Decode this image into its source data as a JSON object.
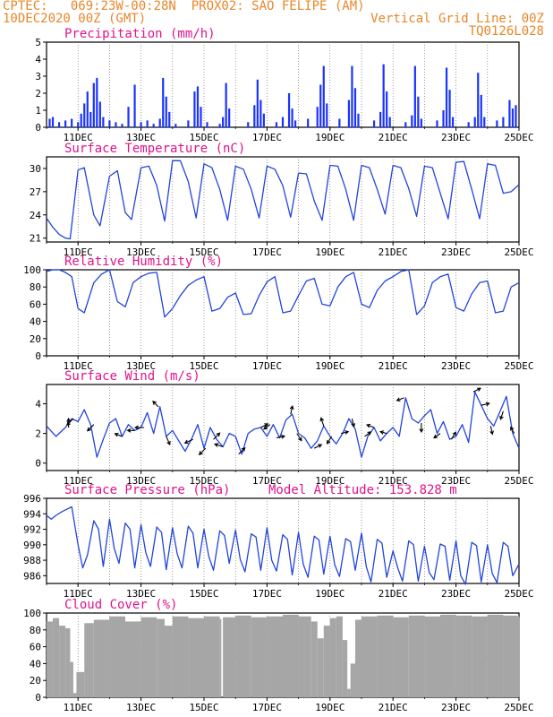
{
  "header": {
    "line1_left": "CPTEC:   069:23W-00:28N  PROX02: SAO FELIPE (AM)",
    "line2_left": "10DEC2020 00Z (GMT)",
    "line2_right": "Vertical Grid Line: 00Z",
    "line3_right": "TQ0126L028"
  },
  "colors": {
    "header": "#e8862a",
    "panel_title": "#e0138c",
    "line": "#2244dd",
    "bar": "#1a33ff",
    "cloud": "#a6a6a6",
    "arrow": "#000000"
  },
  "x_ticks": [
    "11DEC",
    "13DEC",
    "15DEC",
    "17DEC",
    "19DEC",
    "21DEC",
    "23DEC",
    "25DEC"
  ],
  "chart_data": [
    {
      "type": "bar",
      "title": "Precipitation (mm/h)",
      "x_range_days": [
        10,
        25
      ],
      "ylim": [
        0,
        5
      ],
      "yticks": [
        0,
        1,
        2,
        3,
        4,
        5
      ],
      "x": [
        10.1,
        10.2,
        10.4,
        10.6,
        10.8,
        11.0,
        11.1,
        11.2,
        11.3,
        11.4,
        11.5,
        11.6,
        11.7,
        11.8,
        12.0,
        12.2,
        12.4,
        12.6,
        12.8,
        13.0,
        13.2,
        13.4,
        13.6,
        13.7,
        13.8,
        13.9,
        14.1,
        14.5,
        14.7,
        14.8,
        14.9,
        15.1,
        15.5,
        15.6,
        15.7,
        15.8,
        16.4,
        16.6,
        16.7,
        16.8,
        16.9,
        17.3,
        17.5,
        17.7,
        17.8,
        17.9,
        18.3,
        18.6,
        18.7,
        18.8,
        18.9,
        19.3,
        19.6,
        19.7,
        19.8,
        19.9,
        20.4,
        20.6,
        20.7,
        20.8,
        20.9,
        21.4,
        21.6,
        21.7,
        21.8,
        21.9,
        22.4,
        22.6,
        22.7,
        22.8,
        22.9,
        23.4,
        23.6,
        23.7,
        23.8,
        23.9,
        24.3,
        24.5,
        24.7,
        24.8,
        24.9
      ],
      "values": [
        0.5,
        0.6,
        0.3,
        0.4,
        0.5,
        0.3,
        0.8,
        1.4,
        2.1,
        0.9,
        2.6,
        2.9,
        1.5,
        0.6,
        0.4,
        0.3,
        0.2,
        1.2,
        2.5,
        0.3,
        0.4,
        0.2,
        0.5,
        2.9,
        1.8,
        0.9,
        0.2,
        0.4,
        2.1,
        2.4,
        1.2,
        0.3,
        0.2,
        0.6,
        2.6,
        1.1,
        0.3,
        1.3,
        2.8,
        1.6,
        0.8,
        0.3,
        0.6,
        2.0,
        1.1,
        0.4,
        0.5,
        1.2,
        2.5,
        3.6,
        1.4,
        0.5,
        1.6,
        3.6,
        2.3,
        0.8,
        0.4,
        0.9,
        3.7,
        2.1,
        0.6,
        0.3,
        0.7,
        3.6,
        1.8,
        0.5,
        0.4,
        1.0,
        3.5,
        2.2,
        0.6,
        0.3,
        0.6,
        3.2,
        1.9,
        0.6,
        0.4,
        0.6,
        1.6,
        1.1,
        1.3
      ]
    },
    {
      "type": "line",
      "title": "Surface Temperature (nC)",
      "x_range_days": [
        10,
        25
      ],
      "ylim": [
        20.5,
        31.5
      ],
      "yticks": [
        21,
        24,
        27,
        30
      ],
      "x": [
        10.0,
        10.2,
        10.4,
        10.6,
        10.75,
        11.0,
        11.2,
        11.5,
        11.7,
        12.0,
        12.25,
        12.5,
        12.7,
        13.0,
        13.25,
        13.5,
        13.75,
        14.0,
        14.25,
        14.5,
        14.75,
        15.0,
        15.25,
        15.5,
        15.75,
        16.0,
        16.25,
        16.5,
        16.75,
        17.0,
        17.25,
        17.5,
        17.75,
        18.0,
        18.25,
        18.5,
        18.75,
        19.0,
        19.25,
        19.5,
        19.75,
        20.0,
        20.25,
        20.5,
        20.75,
        21.0,
        21.25,
        21.5,
        21.75,
        22.0,
        22.25,
        22.5,
        22.75,
        23.0,
        23.25,
        23.5,
        23.75,
        24.0,
        24.25,
        24.5,
        24.75,
        25.0
      ],
      "values": [
        23.6,
        22.4,
        21.5,
        21.0,
        20.9,
        29.8,
        30.1,
        24.0,
        22.6,
        29.0,
        29.7,
        24.3,
        23.4,
        30.1,
        30.3,
        27.8,
        23.2,
        31.0,
        31.0,
        28.3,
        23.6,
        30.6,
        30.1,
        27.3,
        23.3,
        30.3,
        29.9,
        27.3,
        23.6,
        30.3,
        29.9,
        27.8,
        23.7,
        29.4,
        29.3,
        25.8,
        23.3,
        30.4,
        30.3,
        27.3,
        23.3,
        30.4,
        30.1,
        27.3,
        24.1,
        30.4,
        30.1,
        27.4,
        23.8,
        30.3,
        30.1,
        26.8,
        23.5,
        30.8,
        30.9,
        27.3,
        23.5,
        30.6,
        30.4,
        26.8,
        27.0,
        27.9
      ]
    },
    {
      "type": "line",
      "title": "Relative Humidity (%)",
      "x_range_days": [
        10,
        25
      ],
      "ylim": [
        0,
        100
      ],
      "yticks": [
        0,
        20,
        40,
        60,
        80,
        100
      ],
      "x": [
        10.0,
        10.2,
        10.4,
        10.6,
        10.8,
        11.0,
        11.2,
        11.5,
        11.75,
        12.0,
        12.25,
        12.5,
        12.75,
        13.0,
        13.25,
        13.5,
        13.75,
        14.0,
        14.25,
        14.5,
        14.75,
        15.0,
        15.25,
        15.5,
        15.75,
        16.0,
        16.25,
        16.5,
        16.75,
        17.0,
        17.25,
        17.5,
        17.75,
        18.0,
        18.25,
        18.5,
        18.75,
        19.0,
        19.25,
        19.5,
        19.75,
        20.0,
        20.25,
        20.5,
        20.75,
        21.0,
        21.25,
        21.5,
        21.75,
        22.0,
        22.25,
        22.5,
        22.75,
        23.0,
        23.25,
        23.5,
        23.75,
        24.0,
        24.25,
        24.5,
        24.75,
        25.0
      ],
      "values": [
        98,
        100,
        100,
        97,
        92,
        55,
        50,
        85,
        95,
        100,
        63,
        57,
        85,
        92,
        96,
        97,
        45,
        55,
        70,
        82,
        88,
        92,
        52,
        55,
        68,
        73,
        48,
        49,
        70,
        86,
        92,
        50,
        52,
        70,
        87,
        90,
        60,
        58,
        80,
        92,
        97,
        60,
        56,
        76,
        87,
        92,
        98,
        100,
        48,
        58,
        85,
        92,
        95,
        56,
        52,
        72,
        85,
        87,
        50,
        52,
        80,
        85
      ]
    },
    {
      "type": "line",
      "title": "Surface Wind (m/s)",
      "x_range_days": [
        10,
        25
      ],
      "ylim": [
        -0.5,
        5.3
      ],
      "yticks": [
        0,
        2,
        4
      ],
      "x": [
        10.0,
        10.3,
        10.6,
        10.8,
        11.0,
        11.2,
        11.4,
        11.6,
        11.8,
        12.0,
        12.2,
        12.4,
        12.6,
        12.8,
        13.0,
        13.2,
        13.4,
        13.6,
        13.8,
        14.0,
        14.2,
        14.4,
        14.6,
        14.8,
        15.0,
        15.2,
        15.4,
        15.6,
        15.8,
        16.0,
        16.2,
        16.4,
        16.6,
        16.8,
        17.0,
        17.2,
        17.4,
        17.6,
        17.8,
        18.0,
        18.2,
        18.4,
        18.6,
        18.8,
        19.0,
        19.2,
        19.4,
        19.6,
        19.8,
        20.0,
        20.2,
        20.4,
        20.6,
        20.8,
        21.0,
        21.2,
        21.4,
        21.6,
        21.8,
        22.0,
        22.2,
        22.4,
        22.6,
        22.8,
        23.0,
        23.2,
        23.4,
        23.6,
        23.8,
        24.0,
        24.2,
        24.4,
        24.6,
        24.8,
        25.0
      ],
      "values": [
        2.5,
        1.8,
        2.4,
        3.0,
        2.8,
        3.6,
        2.6,
        0.4,
        1.6,
        2.7,
        3.0,
        1.8,
        2.6,
        2.2,
        2.4,
        3.4,
        2.0,
        3.8,
        1.8,
        2.2,
        1.5,
        0.8,
        1.6,
        2.6,
        1.0,
        2.4,
        1.6,
        1.1,
        2.0,
        1.8,
        0.6,
        2.0,
        2.3,
        2.4,
        1.8,
        2.6,
        1.7,
        2.9,
        3.3,
        2.0,
        1.7,
        1.0,
        1.5,
        2.5,
        1.8,
        1.3,
        2.0,
        3.0,
        2.3,
        0.4,
        1.8,
        2.4,
        1.5,
        2.0,
        2.4,
        1.8,
        4.4,
        3.0,
        2.7,
        3.2,
        3.6,
        2.0,
        2.8,
        1.6,
        1.8,
        2.6,
        1.4,
        4.8,
        3.9,
        3.0,
        2.5,
        3.5,
        4.5,
        2.0,
        1.0
      ],
      "arrows": [
        {
          "day": 10.7,
          "u": 0,
          "v": 1
        },
        {
          "day": 10.85,
          "u": -0.7,
          "v": -0.7
        },
        {
          "day": 11.5,
          "u": -0.7,
          "v": -0.7
        },
        {
          "day": 12.4,
          "u": -0.8,
          "v": 0.3
        },
        {
          "day": 12.8,
          "u": -0.8,
          "v": 0
        },
        {
          "day": 13.1,
          "u": -1,
          "v": 0
        },
        {
          "day": 13.55,
          "u": -0.6,
          "v": 0.6
        },
        {
          "day": 13.8,
          "u": 0.4,
          "v": -0.9
        },
        {
          "day": 14.65,
          "u": -0.9,
          "v": -0.4
        },
        {
          "day": 15.05,
          "u": -0.7,
          "v": -0.7
        },
        {
          "day": 15.3,
          "u": 0.7,
          "v": 0.7
        },
        {
          "day": 15.6,
          "u": -0.9,
          "v": 0.3
        },
        {
          "day": 16.1,
          "u": 0.7,
          "v": 0.7
        },
        {
          "day": 16.8,
          "u": 0.8,
          "v": 0.4
        },
        {
          "day": 17.1,
          "u": -0.7,
          "v": -0.5
        },
        {
          "day": 17.3,
          "u": 0.9,
          "v": 0.2
        },
        {
          "day": 17.75,
          "u": 0.2,
          "v": 0.9
        },
        {
          "day": 17.95,
          "u": 0.5,
          "v": -0.8
        },
        {
          "day": 18.5,
          "u": 0.8,
          "v": 0.4
        },
        {
          "day": 18.8,
          "u": -0.3,
          "v": 0.9
        },
        {
          "day": 19.05,
          "u": -0.5,
          "v": -0.8
        },
        {
          "day": 19.35,
          "u": 0.8,
          "v": 0.2
        },
        {
          "day": 19.7,
          "u": 0.2,
          "v": -0.9
        },
        {
          "day": 20.1,
          "u": 0.7,
          "v": 0.5
        },
        {
          "day": 20.4,
          "u": -0.8,
          "v": 0.3
        },
        {
          "day": 20.8,
          "u": -0.7,
          "v": 0.2
        },
        {
          "day": 21.35,
          "u": -0.8,
          "v": -0.3
        },
        {
          "day": 21.9,
          "u": 0,
          "v": -1
        },
        {
          "day": 22.5,
          "u": -0.7,
          "v": -0.5
        },
        {
          "day": 22.85,
          "u": 0.5,
          "v": 0.8
        },
        {
          "day": 23.55,
          "u": 0.8,
          "v": 0.4
        },
        {
          "day": 23.8,
          "u": 0.9,
          "v": 0.2
        },
        {
          "day": 24.1,
          "u": 0.2,
          "v": -0.9
        },
        {
          "day": 24.5,
          "u": -0.3,
          "v": -0.9
        },
        {
          "day": 24.85,
          "u": -0.4,
          "v": 0.7
        }
      ]
    },
    {
      "type": "line",
      "title": "Surface Pressure (hPa)",
      "annotation": "Model Altitude: 153.828 m",
      "x_range_days": [
        10,
        25
      ],
      "ylim": [
        985,
        996
      ],
      "yticks": [
        986,
        988,
        990,
        992,
        994,
        996
      ],
      "x": [
        10.0,
        10.15,
        10.3,
        10.5,
        10.65,
        10.8,
        11.0,
        11.15,
        11.3,
        11.5,
        11.65,
        11.8,
        12.0,
        12.15,
        12.3,
        12.5,
        12.65,
        12.8,
        13.0,
        13.15,
        13.3,
        13.5,
        13.65,
        13.8,
        14.0,
        14.15,
        14.3,
        14.5,
        14.65,
        14.8,
        15.0,
        15.15,
        15.3,
        15.5,
        15.65,
        15.8,
        16.0,
        16.15,
        16.3,
        16.5,
        16.65,
        16.8,
        17.0,
        17.15,
        17.3,
        17.5,
        17.65,
        17.8,
        18.0,
        18.15,
        18.3,
        18.5,
        18.65,
        18.8,
        19.0,
        19.15,
        19.3,
        19.5,
        19.65,
        19.8,
        20.0,
        20.15,
        20.3,
        20.5,
        20.65,
        20.8,
        21.0,
        21.15,
        21.3,
        21.5,
        21.65,
        21.8,
        22.0,
        22.15,
        22.3,
        22.5,
        22.65,
        22.8,
        23.0,
        23.15,
        23.3,
        23.5,
        23.65,
        23.8,
        24.0,
        24.15,
        24.3,
        24.5,
        24.65,
        24.8,
        25.0
      ],
      "values": [
        993.8,
        993.3,
        993.8,
        994.3,
        994.6,
        994.9,
        990.0,
        987.0,
        988.7,
        993.1,
        992.0,
        987.2,
        993.3,
        989.5,
        987.6,
        992.8,
        992.0,
        987.0,
        992.6,
        989.0,
        987.2,
        992.3,
        991.6,
        986.8,
        992.2,
        988.8,
        987.0,
        992.4,
        991.5,
        987.0,
        992.0,
        988.5,
        986.7,
        991.8,
        991.2,
        987.6,
        991.9,
        988.1,
        986.5,
        991.4,
        991.0,
        986.7,
        992.2,
        988.0,
        986.6,
        991.3,
        990.7,
        986.1,
        991.6,
        987.5,
        985.8,
        991.1,
        990.6,
        986.2,
        991.1,
        987.4,
        985.9,
        990.8,
        990.4,
        986.7,
        991.5,
        987.2,
        985.2,
        990.7,
        990.2,
        985.8,
        989.2,
        987.0,
        985.3,
        990.5,
        990.0,
        985.3,
        989.8,
        986.4,
        985.5,
        990.1,
        989.8,
        985.4,
        990.5,
        986.0,
        984.9,
        990.3,
        989.9,
        985.2,
        990.0,
        986.3,
        985.1,
        990.3,
        989.8,
        986.0,
        987.5
      ]
    },
    {
      "type": "bar",
      "title": "Cloud Cover (%)",
      "x_range_days": [
        10,
        25
      ],
      "ylim": [
        0,
        100
      ],
      "yticks": [
        0,
        20,
        40,
        60,
        80,
        100
      ],
      "x": [
        10.0,
        10.2,
        10.4,
        10.6,
        10.75,
        10.85,
        10.95,
        11.2,
        11.5,
        12.0,
        12.5,
        13.0,
        13.5,
        13.75,
        14.0,
        14.5,
        15.0,
        15.5,
        15.55,
        15.6,
        16.0,
        16.5,
        17.0,
        17.5,
        18.0,
        18.4,
        18.6,
        18.8,
        19.0,
        19.2,
        19.4,
        19.55,
        19.65,
        19.8,
        20.0,
        20.5,
        21.0,
        21.5,
        22.0,
        22.5,
        23.0,
        23.5,
        24.0,
        24.5,
        25.0
      ],
      "values": [
        90,
        94,
        85,
        82,
        42,
        5,
        30,
        88,
        92,
        96,
        90,
        95,
        93,
        85,
        96,
        94,
        96,
        93,
        0,
        95,
        97,
        95,
        96,
        98,
        96,
        90,
        70,
        85,
        94,
        96,
        68,
        10,
        40,
        92,
        96,
        97,
        95,
        97,
        96,
        98,
        97,
        96,
        98,
        97,
        95
      ]
    }
  ]
}
